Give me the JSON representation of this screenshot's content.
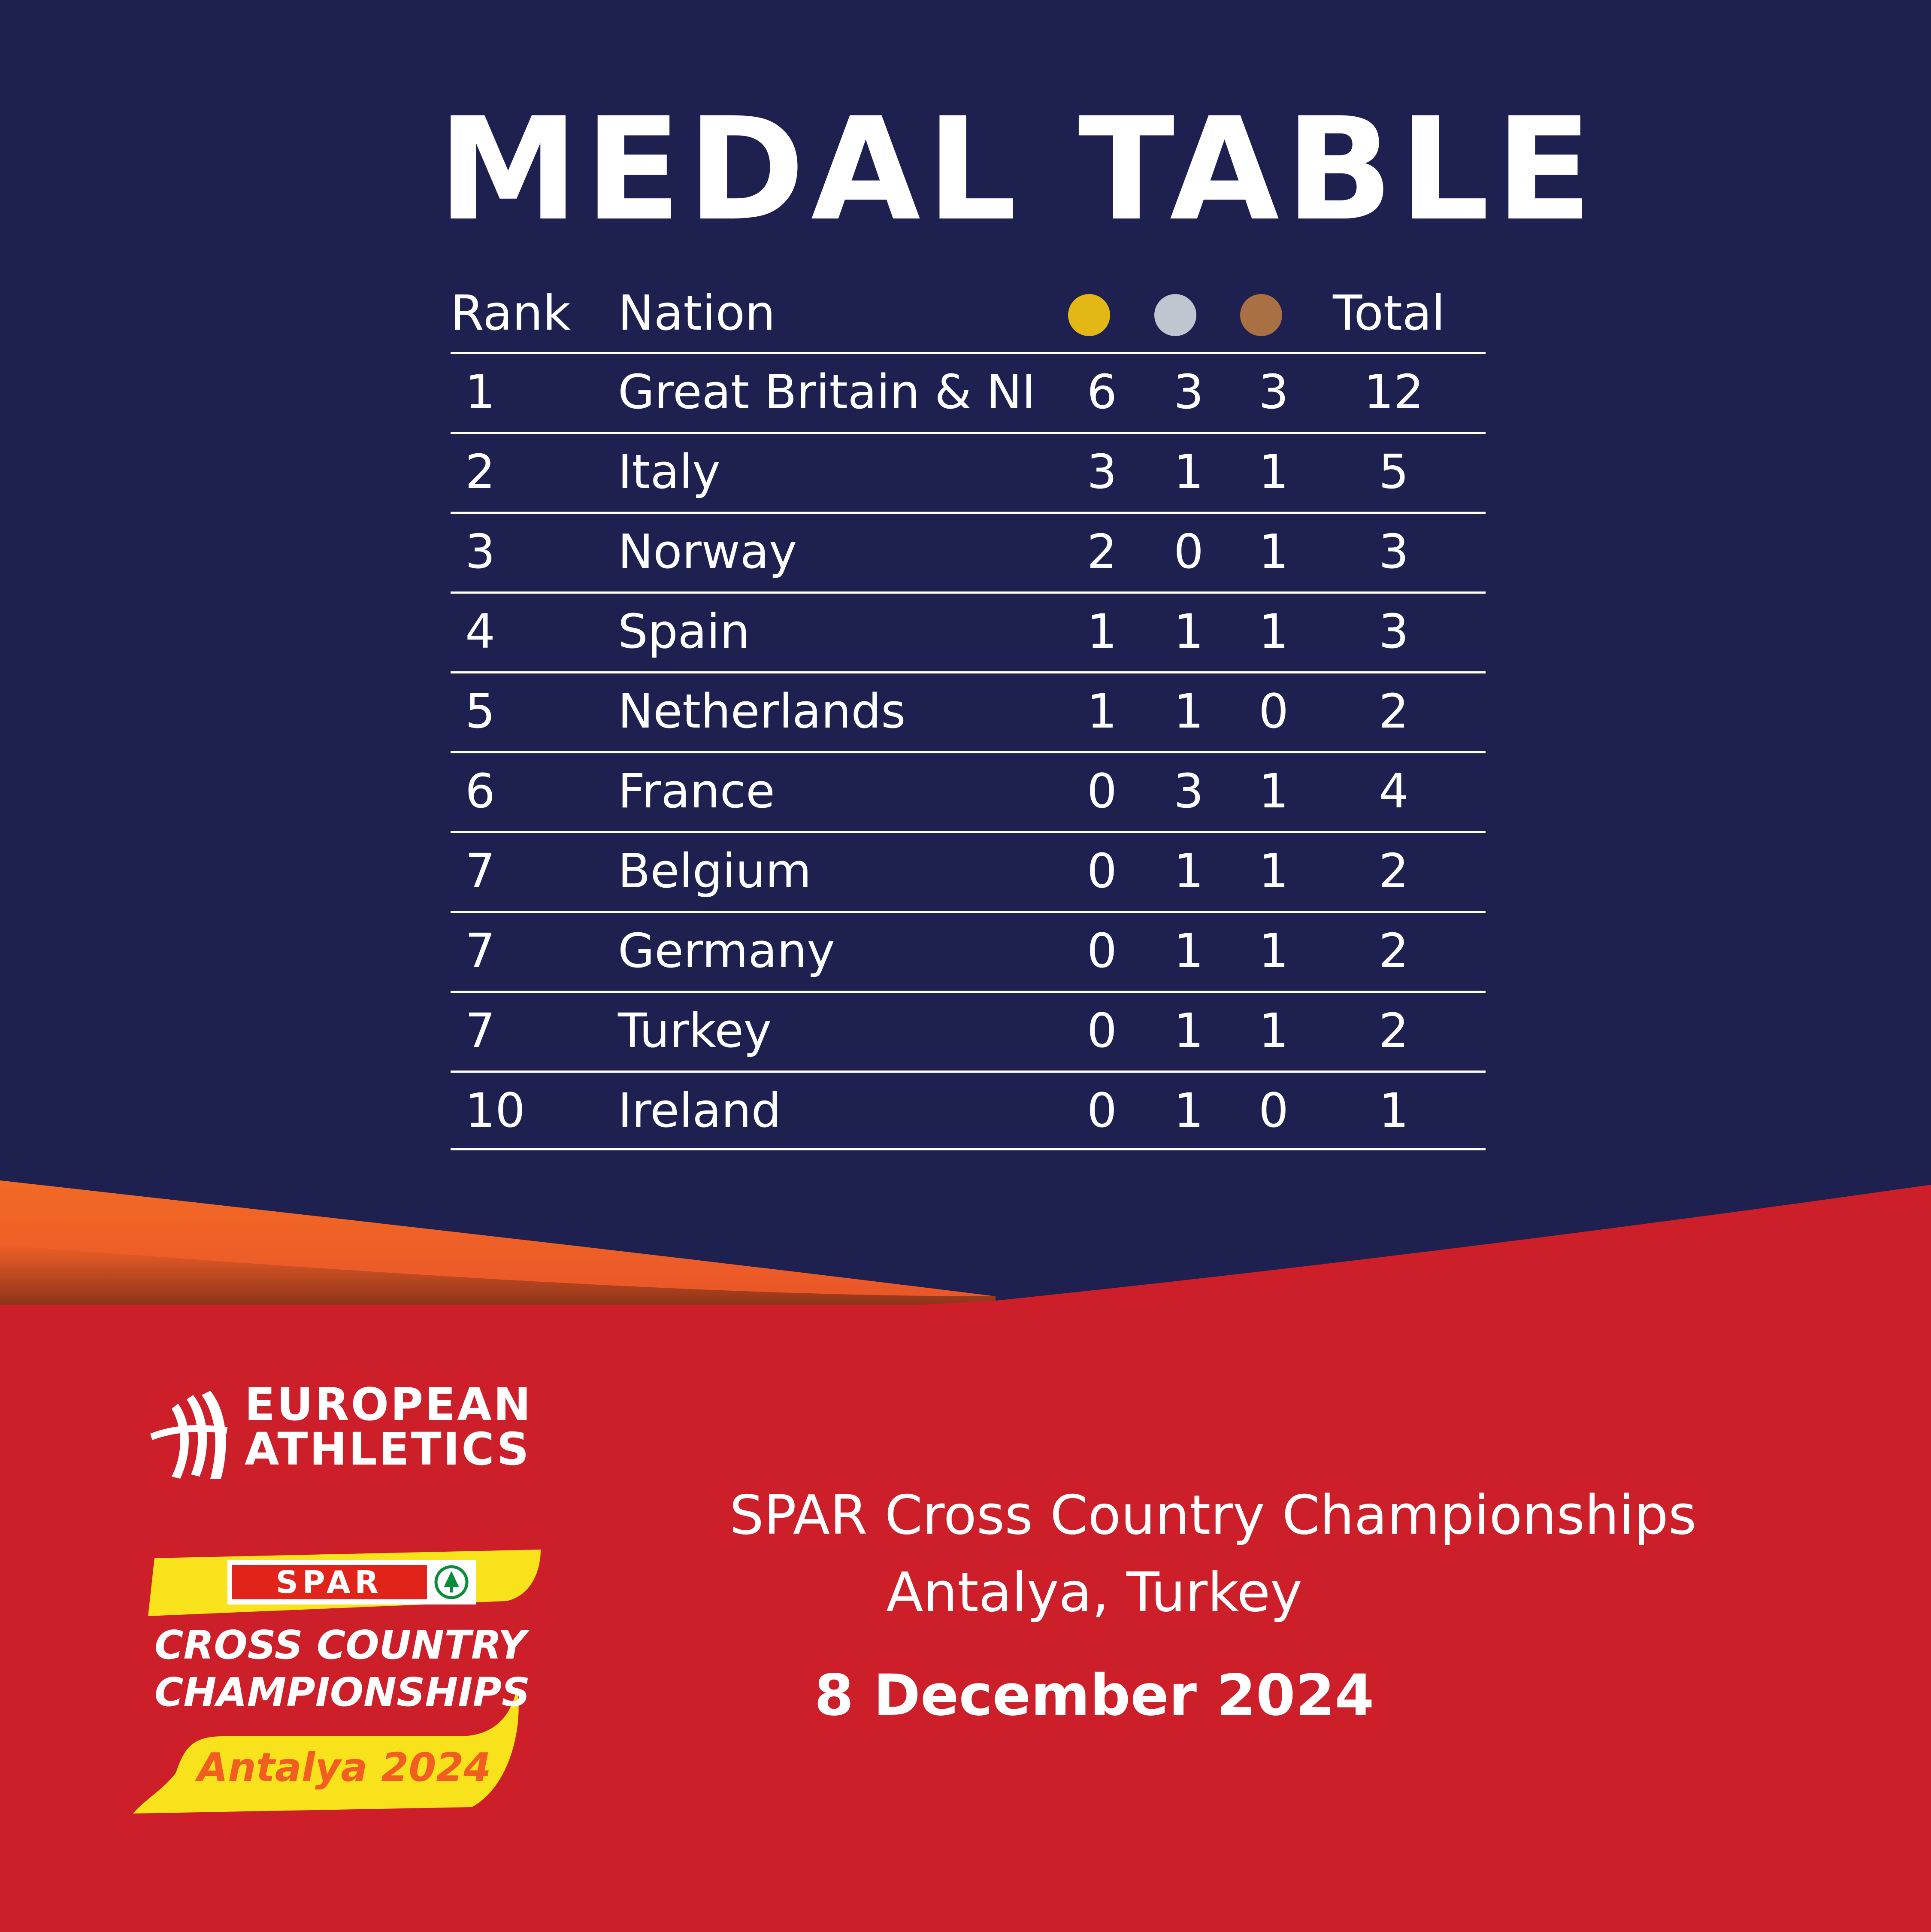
{
  "colors": {
    "navy": "#1e2150",
    "red": "#cc1f2a",
    "orange": "#f26a25",
    "yellow": "#f7e21c",
    "gold_medal": "#e3b715",
    "silver_medal": "#bfc6cf",
    "bronze_medal": "#a97143"
  },
  "title": "MEDAL TABLE",
  "table": {
    "headers": {
      "rank": "Rank",
      "nation": "Nation",
      "total": "Total"
    },
    "medal_icons": [
      "gold-medal-icon",
      "silver-medal-icon",
      "bronze-medal-icon"
    ],
    "rows": [
      {
        "rank": "1",
        "nation": "Great Britain & NI",
        "gold": "6",
        "silver": "3",
        "bronze": "3",
        "total": "12"
      },
      {
        "rank": "2",
        "nation": "Italy",
        "gold": "3",
        "silver": "1",
        "bronze": "1",
        "total": "5"
      },
      {
        "rank": "3",
        "nation": "Norway",
        "gold": "2",
        "silver": "0",
        "bronze": "1",
        "total": "3"
      },
      {
        "rank": "4",
        "nation": "Spain",
        "gold": "1",
        "silver": "1",
        "bronze": "1",
        "total": "3"
      },
      {
        "rank": "5",
        "nation": "Netherlands",
        "gold": "1",
        "silver": "1",
        "bronze": "0",
        "total": "2"
      },
      {
        "rank": "6",
        "nation": "France",
        "gold": "0",
        "silver": "3",
        "bronze": "1",
        "total": "4"
      },
      {
        "rank": "7",
        "nation": "Belgium",
        "gold": "0",
        "silver": "1",
        "bronze": "1",
        "total": "2"
      },
      {
        "rank": "7",
        "nation": "Germany",
        "gold": "0",
        "silver": "1",
        "bronze": "1",
        "total": "2"
      },
      {
        "rank": "7",
        "nation": "Turkey",
        "gold": "0",
        "silver": "1",
        "bronze": "1",
        "total": "2"
      },
      {
        "rank": "10",
        "nation": "Ireland",
        "gold": "0",
        "silver": "1",
        "bronze": "0",
        "total": "1"
      }
    ]
  },
  "logos": {
    "european_athletics": {
      "line1": "EUROPEAN",
      "line2": "ATHLETICS"
    },
    "event": {
      "sponsor": "SPAR",
      "line1": "CROSS COUNTRY",
      "line2": "CHAMPIONSHIPS",
      "edition": "Antalya 2024"
    }
  },
  "event": {
    "name": "SPAR Cross Country Championships",
    "place": "Antalya, Turkey",
    "date": "8 December 2024"
  }
}
